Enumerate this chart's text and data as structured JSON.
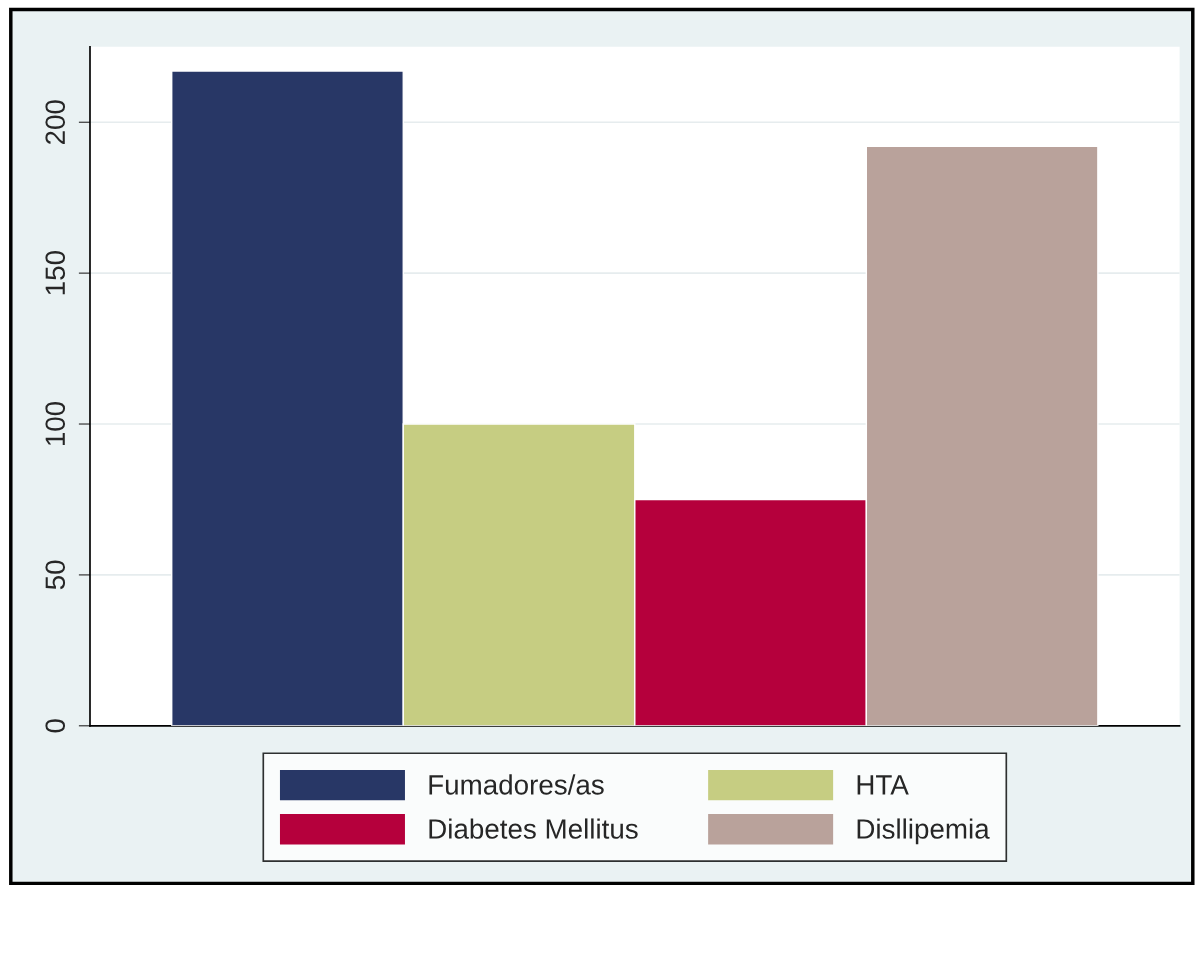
{
  "chart_data": {
    "type": "bar",
    "categories": [
      null
    ],
    "series": [
      {
        "name": "Fumadores/as",
        "color": "#283766",
        "values": [
          217
        ]
      },
      {
        "name": "HTA",
        "color": "#c6cd82",
        "values": [
          100
        ]
      },
      {
        "name": "Diabetes Mellitus",
        "color": "#b5003c",
        "values": [
          75
        ]
      },
      {
        "name": "Disllipemia",
        "color": "#b9a29b",
        "values": [
          192
        ]
      }
    ],
    "ylim": [
      0,
      225
    ],
    "yticks": [
      0,
      50,
      100,
      150,
      200
    ],
    "grid": "y",
    "legend": "bottom"
  }
}
